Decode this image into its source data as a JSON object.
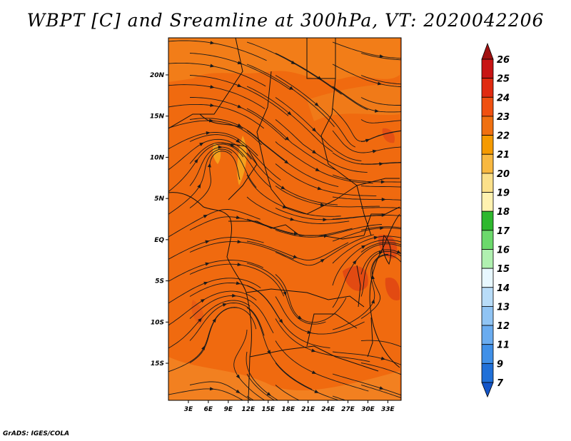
{
  "title": "WBPT [C] and Sreamline at 300hPa, VT: 2020042206",
  "credit": "GrADS: IGES/COLA",
  "map": {
    "lat_labels": [
      "20N",
      "15N",
      "10N",
      "5N",
      "EQ",
      "5S",
      "10S",
      "15S"
    ],
    "lat_values": [
      20,
      15,
      10,
      5,
      0,
      -5,
      -10,
      -15
    ],
    "lon_labels": [
      "3E",
      "6E",
      "9E",
      "12E",
      "15E",
      "18E",
      "21E",
      "24E",
      "27E",
      "30E",
      "33E"
    ],
    "lon_values": [
      3,
      6,
      9,
      12,
      15,
      18,
      21,
      24,
      27,
      30,
      33
    ],
    "lat_range": [
      -19.5,
      24.5
    ],
    "lon_range": [
      0,
      35
    ],
    "base_color": "#f06a0f",
    "streamline_color": "#1a1a1a"
  },
  "colorbar": {
    "levels": [
      "26",
      "25",
      "24",
      "23",
      "22",
      "21",
      "20",
      "19",
      "18",
      "17",
      "16",
      "15",
      "14",
      "13",
      "12",
      "11",
      "9",
      "7"
    ],
    "colors": [
      "#a01010",
      "#c81414",
      "#e02a10",
      "#f05010",
      "#f07010",
      "#f59a00",
      "#f8b840",
      "#fbe08a",
      "#fff2b0",
      "#2eb82e",
      "#6cd96c",
      "#b0f0b0",
      "#e8f8ff",
      "#b8dcf8",
      "#90c4f4",
      "#6aacf0",
      "#4090e8",
      "#2070d8",
      "#1455c8"
    ]
  }
}
